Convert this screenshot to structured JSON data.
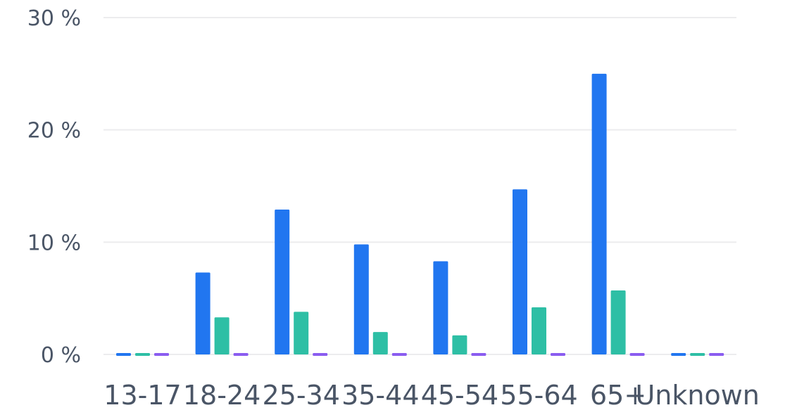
{
  "chart_data": {
    "type": "bar",
    "categories": [
      "13-17",
      "18-24",
      "25-34",
      "35-44",
      "45-54",
      "55-64",
      "65+",
      "Unknown"
    ],
    "series": [
      {
        "color": "#2176f0",
        "values": [
          0,
          7.3,
          12.9,
          9.8,
          8.3,
          14.7,
          25.0,
          0
        ]
      },
      {
        "color": "#2ebfa5",
        "values": [
          0,
          3.3,
          3.8,
          2.0,
          1.7,
          4.2,
          5.7,
          0
        ]
      },
      {
        "color": "#8a5cf0",
        "values": [
          0,
          0,
          0,
          0,
          0,
          0,
          0,
          0
        ]
      }
    ],
    "ylim": [
      0,
      30
    ],
    "yticks": [
      0,
      10,
      20,
      30
    ],
    "ytick_labels": [
      "0 %",
      "10 %",
      "20 %",
      "30 %"
    ],
    "grid": true,
    "legend": "none"
  }
}
